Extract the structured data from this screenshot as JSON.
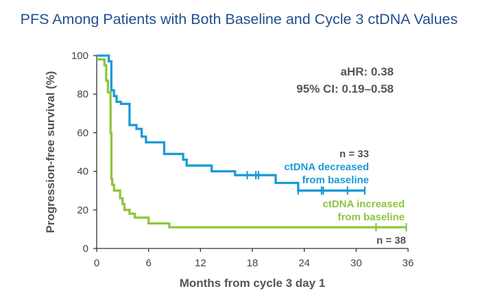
{
  "chart_data": {
    "type": "line",
    "chart_style": "kaplan-meier step",
    "title": "PFS Among Patients with Both Baseline and Cycle 3 ctDNA Values",
    "xlabel": "Months from cycle 3 day 1",
    "ylabel": "Progression-free survival (%)",
    "xlim": [
      0,
      36
    ],
    "ylim": [
      0,
      100
    ],
    "xticks": [
      "0",
      "6",
      "12",
      "18",
      "24",
      "30",
      "36"
    ],
    "xtick_values": [
      0,
      6,
      12,
      18,
      24,
      30,
      36
    ],
    "yticks": [
      "0",
      "20",
      "40",
      "60",
      "80",
      "100"
    ],
    "ytick_values": [
      0,
      20,
      40,
      60,
      80,
      100
    ],
    "stats": {
      "ahr": "aHR: 0.38",
      "ci": "95% CI: 0.19–0.58"
    },
    "series": [
      {
        "name": "ctDNA decreased from baseline",
        "label_lines": [
          "ctDNA decreased",
          "from baseline"
        ],
        "n_label": "n = 33",
        "color": "#1b9ad6",
        "points": [
          [
            0,
            100
          ],
          [
            1.4,
            100
          ],
          [
            1.4,
            97
          ],
          [
            1.7,
            97
          ],
          [
            1.7,
            82
          ],
          [
            2,
            82
          ],
          [
            2,
            79
          ],
          [
            2.3,
            79
          ],
          [
            2.3,
            76
          ],
          [
            2.8,
            76
          ],
          [
            2.8,
            75
          ],
          [
            3.8,
            75
          ],
          [
            3.8,
            64
          ],
          [
            4.6,
            64
          ],
          [
            4.6,
            62
          ],
          [
            5.2,
            62
          ],
          [
            5.2,
            58
          ],
          [
            5.7,
            58
          ],
          [
            5.7,
            55
          ],
          [
            7.8,
            55
          ],
          [
            7.8,
            49
          ],
          [
            10,
            49
          ],
          [
            10,
            46
          ],
          [
            10.4,
            46
          ],
          [
            10.4,
            43
          ],
          [
            13.3,
            43
          ],
          [
            13.3,
            40
          ],
          [
            16,
            40
          ],
          [
            16,
            38
          ],
          [
            20.7,
            38
          ],
          [
            20.7,
            34
          ],
          [
            23.3,
            34
          ],
          [
            23.3,
            30
          ],
          [
            31,
            30
          ]
        ],
        "censor_x": [
          17.4,
          18.4,
          18.7,
          23.3,
          26,
          26.2,
          29,
          31
        ]
      },
      {
        "name": "ctDNA increased from baseline",
        "label_lines": [
          "ctDNA increased",
          "from baseline"
        ],
        "n_label": "n = 38",
        "color": "#8dc63f",
        "points": [
          [
            0,
            98
          ],
          [
            0.9,
            98
          ],
          [
            0.9,
            95
          ],
          [
            1.1,
            95
          ],
          [
            1.1,
            87
          ],
          [
            1.3,
            87
          ],
          [
            1.3,
            81
          ],
          [
            1.6,
            81
          ],
          [
            1.6,
            60
          ],
          [
            1.7,
            60
          ],
          [
            1.7,
            36
          ],
          [
            1.8,
            36
          ],
          [
            1.8,
            33
          ],
          [
            2,
            33
          ],
          [
            2,
            30
          ],
          [
            2.7,
            30
          ],
          [
            2.7,
            26
          ],
          [
            3,
            26
          ],
          [
            3,
            23
          ],
          [
            3.2,
            23
          ],
          [
            3.2,
            20
          ],
          [
            3.8,
            20
          ],
          [
            3.8,
            18
          ],
          [
            4.4,
            18
          ],
          [
            4.4,
            16
          ],
          [
            6,
            16
          ],
          [
            6,
            13
          ],
          [
            8.4,
            13
          ],
          [
            8.4,
            11
          ],
          [
            35.8,
            11
          ]
        ],
        "censor_x": [
          32.3,
          35.8
        ]
      }
    ]
  }
}
